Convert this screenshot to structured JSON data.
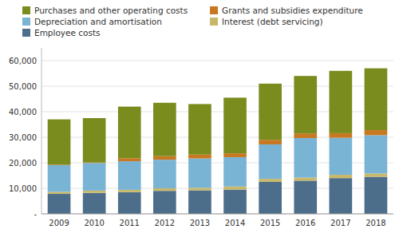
{
  "chart_data": {
    "type": "bar",
    "stacked": true,
    "categories": [
      "2009",
      "2010",
      "2011",
      "2012",
      "2013",
      "2014",
      "2015",
      "2016",
      "2017",
      "2018"
    ],
    "series": [
      {
        "name": "Employee costs",
        "color": "#4d6e8a",
        "values": [
          7800,
          8200,
          8500,
          9000,
          9200,
          9500,
          12500,
          13000,
          14000,
          14500
        ]
      },
      {
        "name": "Interest (debt servicing)",
        "color": "#c8b86a",
        "values": [
          800,
          900,
          900,
          1000,
          1000,
          1200,
          1200,
          1200,
          1300,
          1300
        ]
      },
      {
        "name": "Depreciation and amortisation",
        "color": "#7ab4d4",
        "values": [
          10500,
          10800,
          11200,
          11200,
          11500,
          11500,
          13500,
          15500,
          14500,
          15000
        ]
      },
      {
        "name": "Grants and subsidies expenditure",
        "color": "#c87820",
        "values": [
          200,
          200,
          1200,
          1400,
          1500,
          1500,
          1800,
          1800,
          1800,
          2000
        ]
      },
      {
        "name": "Purchases and other operating costs",
        "color": "#7a8c1e",
        "values": [
          17700,
          17400,
          20200,
          20900,
          19800,
          21800,
          22000,
          22500,
          24400,
          24200
        ]
      }
    ],
    "ylim": [
      0,
      65000
    ],
    "yticks": [
      {
        "value": 0,
        "label": "-"
      },
      {
        "value": 10000,
        "label": "10,000"
      },
      {
        "value": 20000,
        "label": "20,000"
      },
      {
        "value": 30000,
        "label": "30,000"
      },
      {
        "value": 40000,
        "label": "40,000"
      },
      {
        "value": 50000,
        "label": "50,000"
      },
      {
        "value": 60000,
        "label": "60,000"
      }
    ],
    "grid": true,
    "legend": "top"
  }
}
